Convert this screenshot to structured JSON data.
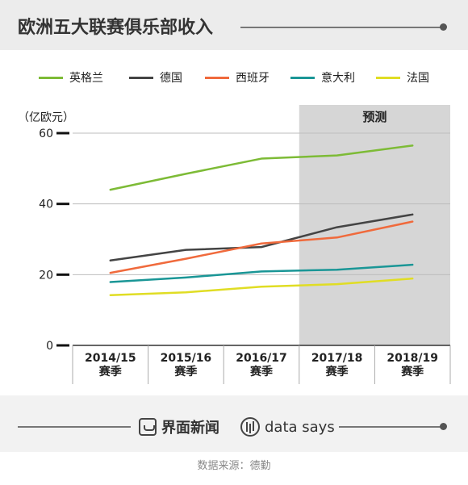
{
  "header": {
    "title": "欧洲五大联赛俱乐部收入"
  },
  "footer": {
    "brand_cn": "界面新闻",
    "brand_en": "data says",
    "source": "数据来源：德勤"
  },
  "chart_data": {
    "type": "line",
    "title": "欧洲五大联赛俱乐部收入",
    "ylabel": "（亿欧元）",
    "xlabel": "",
    "ylim": [
      0,
      60
    ],
    "yticks": [
      0,
      20,
      40,
      60
    ],
    "categories": [
      "2014/15\n赛季",
      "2015/16\n赛季",
      "2016/17\n赛季",
      "2017/18\n赛季",
      "2018/19\n赛季"
    ],
    "grid": true,
    "legend_placement": "top",
    "forecast_region": {
      "label": "预测",
      "from_category": "2017/18\n赛季"
    },
    "series": [
      {
        "name": "英格兰",
        "color": "#7dbb36",
        "values": [
          44.0,
          48.5,
          52.8,
          53.7,
          56.5
        ]
      },
      {
        "name": "德国",
        "color": "#444444",
        "values": [
          24.0,
          27.0,
          27.8,
          33.4,
          37.0
        ]
      },
      {
        "name": "西班牙",
        "color": "#f06a3c",
        "values": [
          20.5,
          24.5,
          28.8,
          30.5,
          35.0
        ]
      },
      {
        "name": "意大利",
        "color": "#1a9696",
        "values": [
          17.9,
          19.2,
          20.9,
          21.4,
          22.8
        ]
      },
      {
        "name": "法国",
        "color": "#e0dd24",
        "values": [
          14.2,
          15.0,
          16.6,
          17.3,
          18.9
        ]
      }
    ]
  }
}
